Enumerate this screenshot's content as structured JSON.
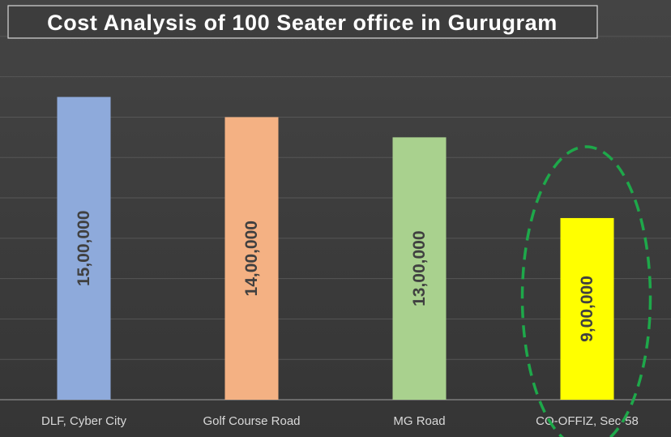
{
  "chart_data": {
    "type": "bar",
    "title": "Cost Analysis of 100 Seater office in Gurugram",
    "categories": [
      "DLF, Cyber City",
      "Golf Course Road",
      "MG Road",
      "CO-OFFIZ, Sec-58"
    ],
    "values": [
      1500000,
      1400000,
      1300000,
      900000
    ],
    "value_labels": [
      "15,00,000",
      "14,00,000",
      "13,00,000",
      "9,00,000"
    ],
    "colors": [
      "#8eaadb",
      "#f4b183",
      "#a9d18e",
      "#ffff00"
    ],
    "highlight": {
      "category": "CO-OFFIZ, Sec-58",
      "style": "dashed-ellipse",
      "color": "#1ea84a"
    },
    "ylim": [
      0,
      1900000
    ],
    "grid": true,
    "legend": "none"
  }
}
